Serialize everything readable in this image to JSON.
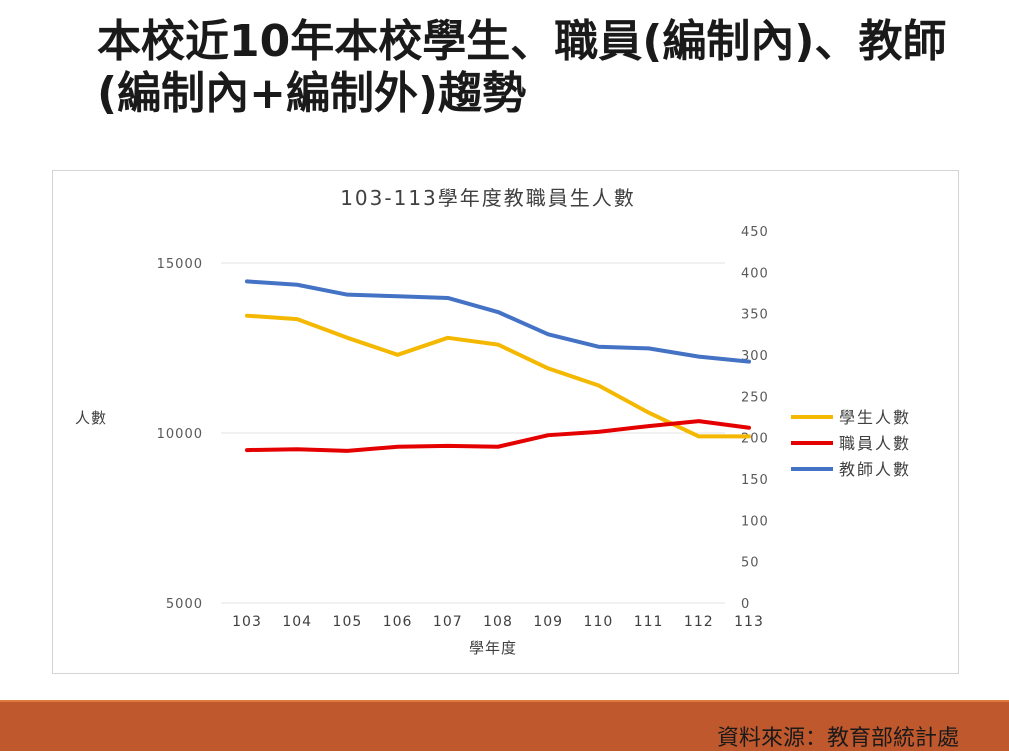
{
  "slide": {
    "title": "本校近10年本校學生、職員(編制內)、教師(編制內+編制外)趨勢",
    "source": "資料來源：教育部統計處"
  },
  "chart_data": {
    "type": "line",
    "title": "103-113學年度教職員生人數",
    "xlabel": "學年度",
    "ylabel": "人數",
    "categories": [
      "103",
      "104",
      "105",
      "106",
      "107",
      "108",
      "109",
      "110",
      "111",
      "112",
      "113"
    ],
    "y_left": {
      "min": 5000,
      "max": 15000,
      "ticks": [
        "15000",
        "10000",
        "5000"
      ]
    },
    "y_right": {
      "min": 0,
      "max": 450,
      "ticks": [
        "450",
        "400",
        "350",
        "300",
        "250",
        "200",
        "150",
        "100",
        "50",
        "0"
      ]
    },
    "grid": true,
    "legend_position": "right",
    "series": [
      {
        "name": "學生人數",
        "axis": "left",
        "color": "#f5b800",
        "values": [
          13450,
          13350,
          12800,
          12300,
          12800,
          12600,
          11900,
          11400,
          10600,
          9900,
          9900
        ]
      },
      {
        "name": "職員人數",
        "axis": "right",
        "color": "#e50000",
        "values": [
          185,
          186,
          184,
          189,
          190,
          189,
          203,
          207,
          214,
          220,
          212
        ]
      },
      {
        "name": "教師人數",
        "axis": "right",
        "color": "#4472c4",
        "values": [
          389,
          385,
          373,
          371,
          369,
          352,
          325,
          310,
          308,
          298,
          292
        ]
      }
    ]
  }
}
